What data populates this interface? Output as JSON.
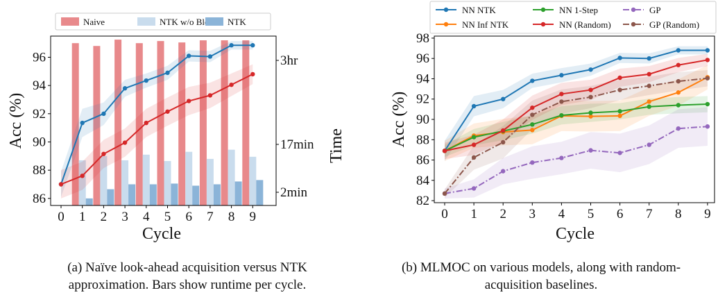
{
  "chart_data": [
    {
      "type": "bar+line",
      "xlabel": "Cycle",
      "ylabel": "Acc (%)",
      "y2label": "Time",
      "x": [
        0,
        1,
        2,
        3,
        4,
        5,
        6,
        7,
        8,
        9
      ],
      "ylim": [
        85.5,
        97.5
      ],
      "yticks": [
        86,
        88,
        90,
        92,
        94,
        96
      ],
      "y2ticks": [
        "2min",
        "17min",
        "3hr"
      ],
      "caption": "(a) Naïve look-ahead acquisition versus NTK approximation. Bars show runtime per cycle.",
      "legend_position": "top",
      "bar_series": [
        {
          "name": "Naive",
          "color": "#e8898b",
          "acc_level": [
            null,
            97.0,
            96.8,
            97.25,
            97.0,
            97.15,
            97.05,
            97.2,
            97.2,
            97.2
          ]
        },
        {
          "name": "NTK w/o Block",
          "color": "#c9dced",
          "acc_level": [
            null,
            88.7,
            89.0,
            88.7,
            89.1,
            88.65,
            89.3,
            88.8,
            89.45,
            88.95
          ]
        },
        {
          "name": "NTK",
          "color": "#8bb4d8",
          "acc_level": [
            null,
            86.0,
            86.65,
            87.0,
            87.0,
            87.05,
            86.9,
            87.0,
            87.2,
            87.3
          ]
        }
      ],
      "line_series": [
        {
          "color": "#1f77b4",
          "values": [
            87.0,
            91.35,
            92.0,
            93.8,
            94.35,
            94.9,
            96.1,
            96.05,
            96.85,
            96.85
          ],
          "band": [
            0.9,
            1.0,
            0.8,
            0.6,
            0.5,
            0.5,
            0.4,
            0.4,
            0.3,
            0.3
          ]
        },
        {
          "color": "#d62728",
          "values": [
            87.0,
            87.6,
            89.15,
            89.95,
            91.35,
            92.15,
            92.9,
            93.3,
            94.05,
            94.8
          ],
          "band": [
            1.0,
            1.0,
            1.0,
            1.0,
            1.0,
            1.0,
            1.0,
            0.9,
            0.8,
            0.7
          ]
        }
      ]
    },
    {
      "type": "line",
      "xlabel": "Cycle",
      "ylabel": "Acc (%)",
      "x": [
        0,
        1,
        2,
        3,
        4,
        5,
        6,
        7,
        8,
        9
      ],
      "ylim": [
        81.8,
        98.2
      ],
      "yticks": [
        82,
        84,
        86,
        88,
        90,
        92,
        94,
        96,
        98
      ],
      "caption": "(b) MLMOC on various models, along with random-acquisition baselines.",
      "legend_position": "top",
      "series": [
        {
          "name": "NN NTK",
          "color": "#1f77b4",
          "dash": "solid",
          "values": [
            86.9,
            91.3,
            92.0,
            93.8,
            94.35,
            94.9,
            96.05,
            96.0,
            96.8,
            96.8
          ],
          "band": [
            1.0,
            1.0,
            0.9,
            0.7,
            0.7,
            0.6,
            0.5,
            0.5,
            0.4,
            0.4
          ]
        },
        {
          "name": "NN Inf NTK",
          "color": "#ff7f0e",
          "dash": "solid",
          "values": [
            86.9,
            88.4,
            88.75,
            88.95,
            90.35,
            90.3,
            90.35,
            91.75,
            92.65,
            94.15
          ],
          "band": [
            1.0,
            1.2,
            1.3,
            1.4,
            1.5,
            1.5,
            1.5,
            1.4,
            1.3,
            1.2
          ]
        },
        {
          "name": "NN 1-Step",
          "color": "#2ca02c",
          "dash": "solid",
          "values": [
            86.9,
            88.25,
            88.85,
            89.5,
            90.4,
            90.65,
            90.8,
            91.25,
            91.4,
            91.5
          ],
          "band": [
            0.6,
            0.8,
            0.9,
            0.9,
            0.9,
            0.9,
            0.8,
            0.8,
            0.8,
            0.8
          ]
        },
        {
          "name": "NN (Random)",
          "color": "#d62728",
          "dash": "solid",
          "values": [
            86.9,
            87.5,
            88.9,
            91.15,
            92.5,
            92.9,
            94.1,
            94.45,
            95.35,
            95.85
          ],
          "band": [
            0.8,
            1.0,
            1.1,
            1.2,
            1.1,
            1.0,
            0.9,
            0.8,
            0.7,
            0.6
          ]
        },
        {
          "name": "GP",
          "color": "#9467bd",
          "dash": "dashdot",
          "values": [
            82.7,
            83.2,
            84.9,
            85.75,
            86.2,
            86.95,
            86.7,
            87.5,
            89.1,
            89.3
          ],
          "band": [
            0.5,
            0.9,
            1.3,
            1.6,
            1.6,
            1.8,
            1.9,
            1.9,
            1.9,
            1.9
          ]
        },
        {
          "name": "GP (Random)",
          "color": "#8c564b",
          "dash": "dashdot",
          "values": [
            82.7,
            86.25,
            87.75,
            90.45,
            91.75,
            92.2,
            92.9,
            93.3,
            93.75,
            94.05
          ],
          "band": [
            0.4,
            1.2,
            1.6,
            1.4,
            1.2,
            1.1,
            1.0,
            0.9,
            0.9,
            0.8
          ]
        }
      ]
    }
  ]
}
